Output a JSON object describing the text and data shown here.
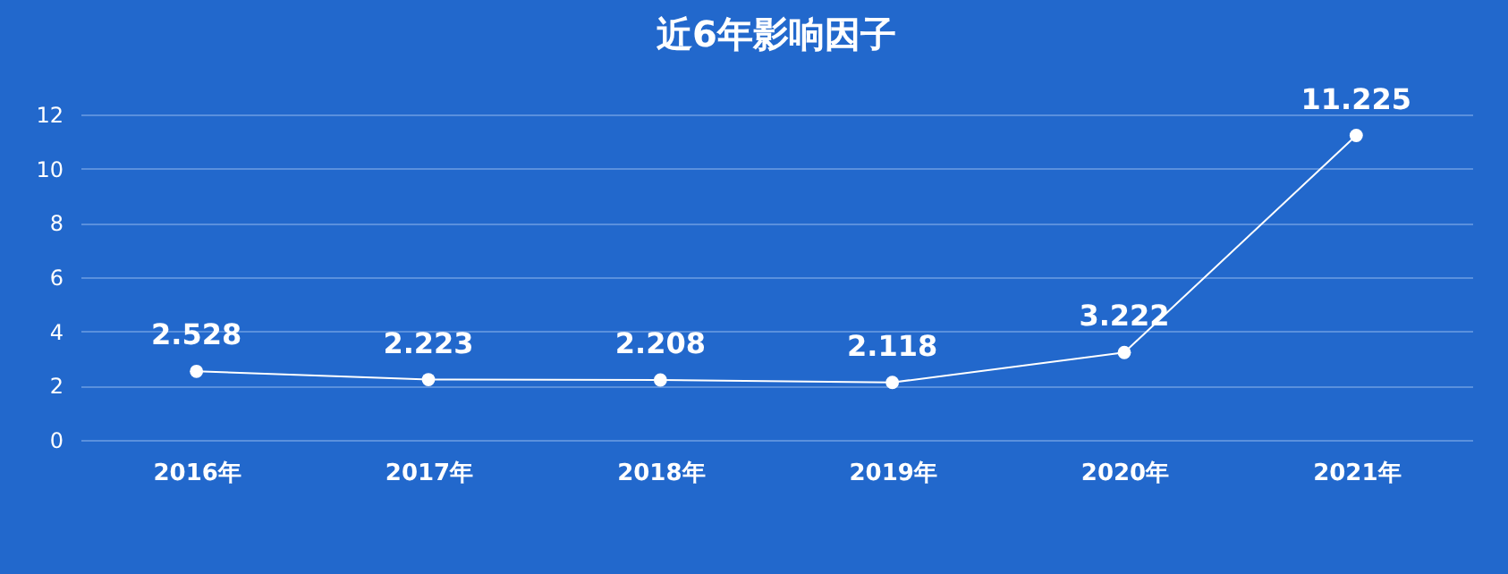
{
  "chart_data": {
    "type": "line",
    "title": "近6年影响因子",
    "categories": [
      "2016年",
      "2017年",
      "2018年",
      "2019年",
      "2020年",
      "2021年"
    ],
    "series": [
      {
        "color": "#ffffff",
        "values": [
          2.528,
          2.223,
          2.208,
          2.118,
          3.222,
          11.225
        ]
      }
    ],
    "ylim": [
      0,
      12
    ],
    "yticks": [
      0,
      2,
      4,
      6,
      8,
      10,
      12
    ],
    "grid": "y",
    "marker": "circle",
    "line_style": "solid",
    "data_labels": true
  }
}
